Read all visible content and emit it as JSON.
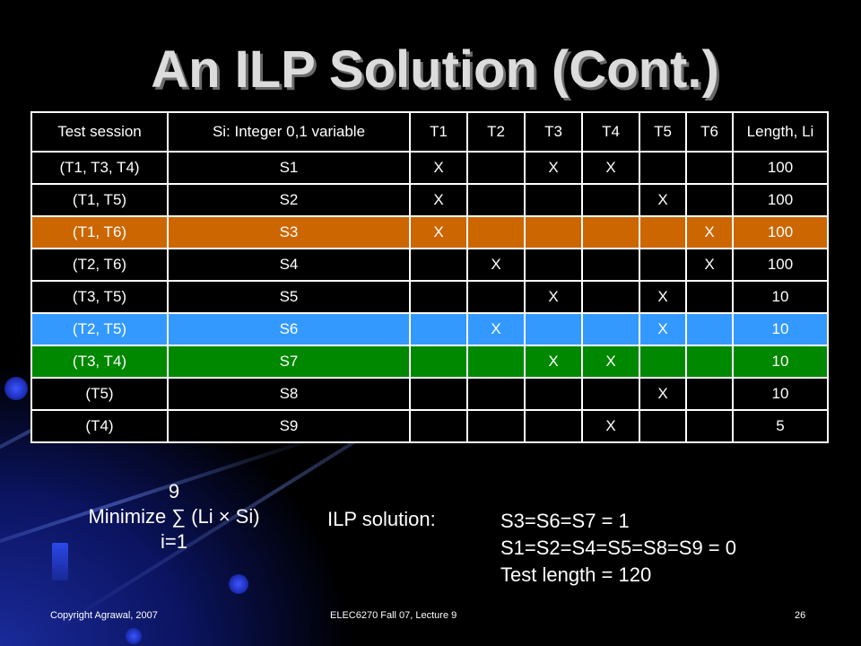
{
  "slide": {
    "title": "An ILP Solution (Cont.)"
  },
  "table": {
    "headers": [
      "Test session",
      "Si: Integer 0,1 variable",
      "T1",
      "T2",
      "T3",
      "T4",
      "T5",
      "T6",
      "Length, Li"
    ],
    "rows": [
      {
        "cells": [
          "(T1, T3, T4)",
          "S1",
          "X",
          "",
          "X",
          "X",
          "",
          "",
          "100"
        ],
        "highlight": ""
      },
      {
        "cells": [
          "(T1, T5)",
          "S2",
          "X",
          "",
          "",
          "",
          "X",
          "",
          "100"
        ],
        "highlight": ""
      },
      {
        "cells": [
          "(T1, T6)",
          "S3",
          "X",
          "",
          "",
          "",
          "",
          "X",
          "100"
        ],
        "highlight": "orange"
      },
      {
        "cells": [
          "(T2, T6)",
          "S4",
          "",
          "X",
          "",
          "",
          "",
          "X",
          "100"
        ],
        "highlight": ""
      },
      {
        "cells": [
          "(T3, T5)",
          "S5",
          "",
          "",
          "X",
          "",
          "X",
          "",
          "10"
        ],
        "highlight": ""
      },
      {
        "cells": [
          "(T2, T5)",
          "S6",
          "",
          "X",
          "",
          "",
          "X",
          "",
          "10"
        ],
        "highlight": "blue"
      },
      {
        "cells": [
          "(T3, T4)",
          "S7",
          "",
          "",
          "X",
          "X",
          "",
          "",
          "10"
        ],
        "highlight": "green"
      },
      {
        "cells": [
          "(T5)",
          "S8",
          "",
          "",
          "",
          "",
          "X",
          "",
          "10"
        ],
        "highlight": ""
      },
      {
        "cells": [
          "(T4)",
          "S9",
          "",
          "",
          "",
          "X",
          "",
          "",
          "5"
        ],
        "highlight": ""
      }
    ]
  },
  "objective": {
    "upper": "9",
    "expression": "Minimize ∑ (Li × Si)",
    "lower": "i=1"
  },
  "solution": {
    "label": "ILP solution:",
    "lines": [
      "S3=S6=S7 = 1",
      "S1=S2=S4=S5=S8=S9 = 0",
      "Test length = 120"
    ]
  },
  "footer": {
    "left": "Copyright Agrawal, 2007",
    "center": "ELEC6270 Fall 07, Lecture 9",
    "page": "26"
  },
  "colors": {
    "orange": "#cc6600",
    "blue": "#3399ff",
    "green": "#008800"
  }
}
